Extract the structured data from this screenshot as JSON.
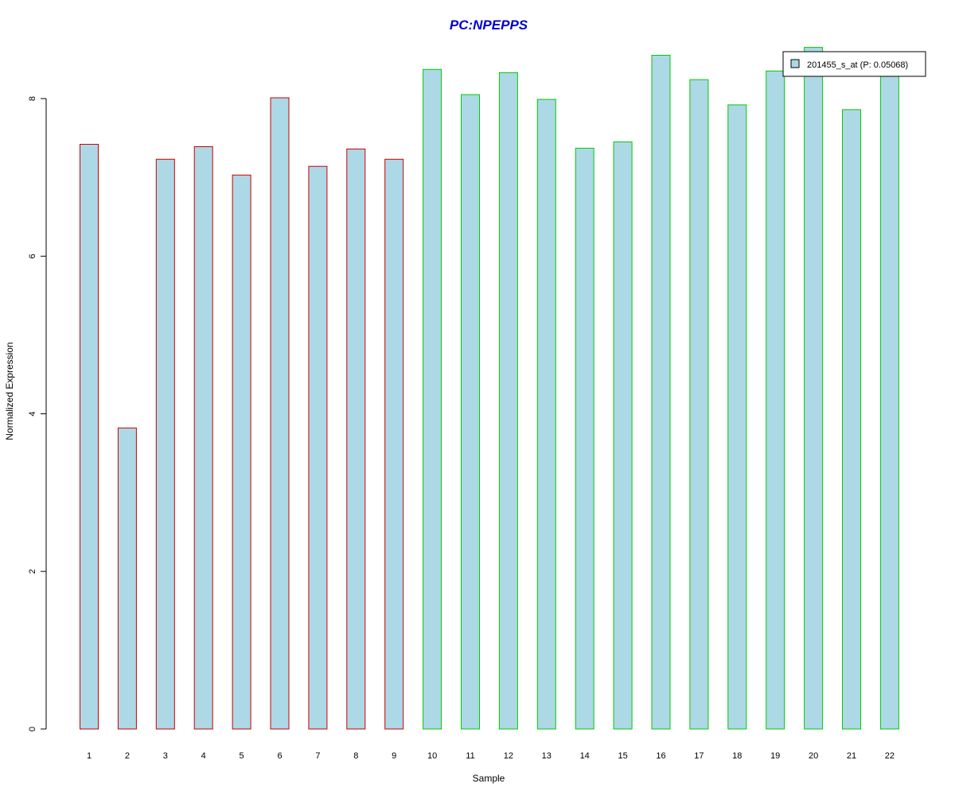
{
  "chart_data": {
    "type": "bar",
    "title": "PC:NPEPPS",
    "title_color": "#0000cc",
    "xlabel": "Sample",
    "ylabel": "Normalized Expression",
    "categories": [
      "1",
      "2",
      "3",
      "4",
      "5",
      "6",
      "7",
      "8",
      "9",
      "10",
      "11",
      "12",
      "13",
      "14",
      "15",
      "16",
      "17",
      "18",
      "19",
      "20",
      "21",
      "22"
    ],
    "series": [
      {
        "name": "201455_s_at (P: 0.05068)",
        "values": [
          7.42,
          3.82,
          7.23,
          7.39,
          7.03,
          8.01,
          7.14,
          7.36,
          7.23,
          8.37,
          8.05,
          8.33,
          7.99,
          7.37,
          7.45,
          8.55,
          8.24,
          7.92,
          8.35,
          8.65,
          7.86,
          8.32
        ]
      }
    ],
    "group_borders": [
      "#cc0000",
      "#cc0000",
      "#cc0000",
      "#cc0000",
      "#cc0000",
      "#cc0000",
      "#cc0000",
      "#cc0000",
      "#cc0000",
      "#00cc00",
      "#00cc00",
      "#00cc00",
      "#00cc00",
      "#00cc00",
      "#00cc00",
      "#00cc00",
      "#00cc00",
      "#00cc00",
      "#00cc00",
      "#00cc00",
      "#00cc00",
      "#00cc00"
    ],
    "bar_fill": "#add8e6",
    "yticks": [
      0,
      2,
      4,
      6,
      8
    ],
    "ylim": [
      0,
      8
    ],
    "grid": false,
    "legend_position": "top-right"
  }
}
